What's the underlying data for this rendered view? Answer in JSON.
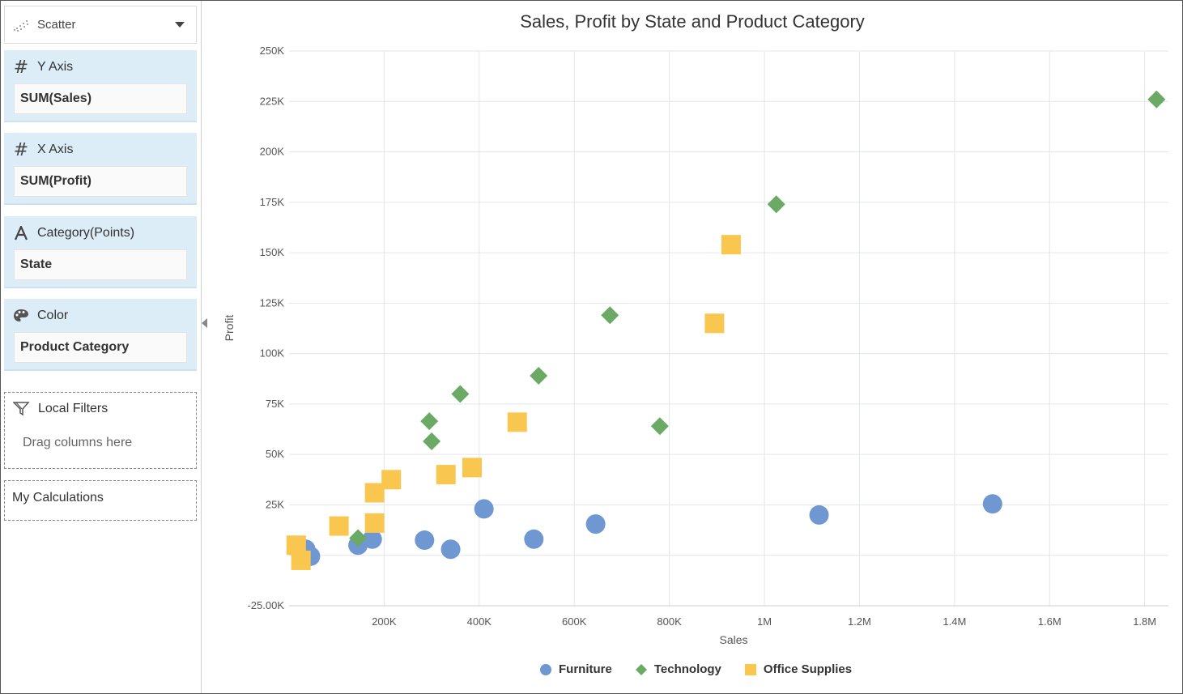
{
  "toolbar": {
    "chart_type": "Scatter"
  },
  "panels": {
    "y_axis": {
      "title": "Y Axis",
      "field": "SUM(Sales)"
    },
    "x_axis": {
      "title": "X Axis",
      "field": "SUM(Profit)"
    },
    "category": {
      "title": "Category(Points)",
      "field": "State"
    },
    "color": {
      "title": "Color",
      "field": "Product Category"
    },
    "local_filters": {
      "title": "Local Filters",
      "hint": "Drag columns here"
    },
    "calculations": {
      "title": "My Calculations"
    }
  },
  "icons": {
    "chart_type": "scatter-icon",
    "y_axis": "hash-icon",
    "x_axis": "hash-icon",
    "category": "text-a-icon",
    "color": "palette-icon",
    "filters": "filter-icon",
    "caret": "chevron-down-icon",
    "collapse": "collapse-left-icon"
  },
  "chart_data": {
    "type": "scatter",
    "title": "Sales, Profit by State and Product Category",
    "xlabel": "Sales",
    "ylabel": "Profit",
    "xlim": [
      0,
      1850000
    ],
    "ylim": [
      -25000,
      250000
    ],
    "xticks": [
      200000,
      400000,
      600000,
      800000,
      1000000,
      1200000,
      1400000,
      1600000,
      1800000
    ],
    "xtick_labels": [
      "200K",
      "400K",
      "600K",
      "800K",
      "1M",
      "1.2M",
      "1.4M",
      "1.6M",
      "1.8M"
    ],
    "yticks": [
      -25000,
      25000,
      50000,
      75000,
      100000,
      125000,
      150000,
      175000,
      200000,
      225000,
      250000
    ],
    "ytick_labels": [
      "-25.00K",
      "25K",
      "50K",
      "75K",
      "100K",
      "125K",
      "150K",
      "175K",
      "200K",
      "225K",
      "250K"
    ],
    "grid": true,
    "legend_position": "bottom",
    "series": [
      {
        "name": "Furniture",
        "color": "#6f97d2",
        "marker": "circle",
        "points": [
          [
            35000,
            3000
          ],
          [
            45000,
            -500
          ],
          [
            145000,
            5000
          ],
          [
            175000,
            8000
          ],
          [
            285000,
            7500
          ],
          [
            340000,
            3000
          ],
          [
            410000,
            23000
          ],
          [
            515000,
            8000
          ],
          [
            645000,
            15500
          ],
          [
            1115000,
            20000
          ],
          [
            1480000,
            25500
          ]
        ]
      },
      {
        "name": "Technology",
        "color": "#6aaa64",
        "marker": "diamond",
        "points": [
          [
            145000,
            8500
          ],
          [
            295000,
            66500
          ],
          [
            300000,
            56500
          ],
          [
            360000,
            80000
          ],
          [
            525000,
            89000
          ],
          [
            675000,
            119000
          ],
          [
            780000,
            64000
          ],
          [
            1025000,
            174000
          ],
          [
            1825000,
            226000
          ]
        ]
      },
      {
        "name": "Office Supplies",
        "color": "#f9c74f",
        "marker": "square",
        "points": [
          [
            15000,
            5000
          ],
          [
            25000,
            -2500
          ],
          [
            105000,
            14500
          ],
          [
            180000,
            16000
          ],
          [
            180000,
            31000
          ],
          [
            215000,
            37500
          ],
          [
            330000,
            40000
          ],
          [
            385000,
            43500
          ],
          [
            480000,
            66000
          ],
          [
            895000,
            115000
          ],
          [
            930000,
            154000
          ]
        ]
      }
    ]
  }
}
